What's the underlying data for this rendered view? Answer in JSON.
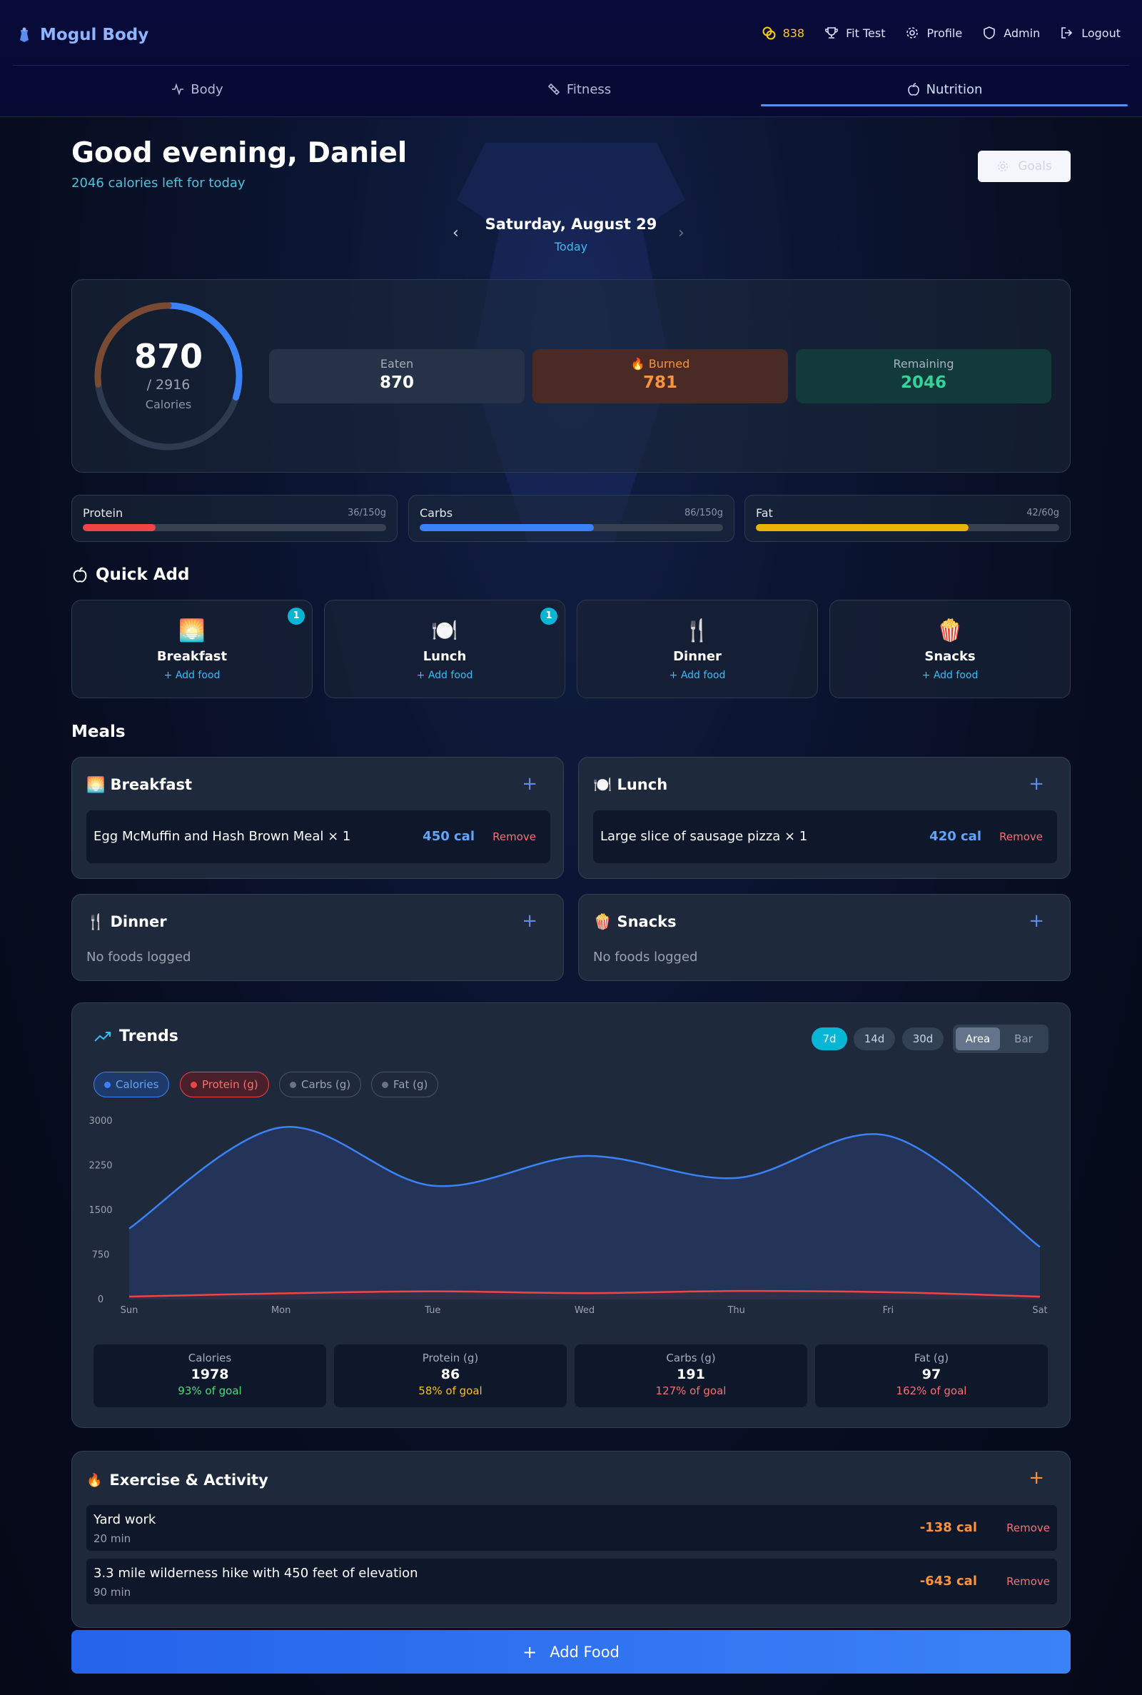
{
  "header": {
    "brand": "Mogul Body",
    "coins": "838",
    "nav": {
      "fit_test": "Fit Test",
      "profile": "Profile",
      "admin": "Admin",
      "logout": "Logout"
    },
    "tabs": [
      {
        "label": "Body"
      },
      {
        "label": "Fitness"
      },
      {
        "label": "Nutrition"
      }
    ]
  },
  "greeting": {
    "title": "Good evening, Daniel",
    "subtitle": "2046 calories left for today",
    "goals_button": "Goals"
  },
  "date": {
    "label": "Saturday, August 29",
    "sub": "Today"
  },
  "summary": {
    "ring_value": "870",
    "ring_goal": "/ 2916",
    "ring_label": "Calories",
    "eaten_fraction": 0.298,
    "burned_fraction": 0.268,
    "eaten": {
      "label": "Eaten",
      "value": "870"
    },
    "burned": {
      "label": "Burned",
      "value": "781"
    },
    "remaining": {
      "label": "Remaining",
      "value": "2046"
    }
  },
  "macros": [
    {
      "name": "Protein",
      "value": "36/150g",
      "fraction": 0.24,
      "color": "#ef4444"
    },
    {
      "name": "Carbs",
      "value": "86/150g",
      "fraction": 0.573,
      "color": "#3b82f6"
    },
    {
      "name": "Fat",
      "value": "42/60g",
      "fraction": 0.7,
      "color": "#eab308"
    }
  ],
  "quick_add": {
    "title": "Quick Add",
    "items": [
      {
        "emoji": "🌅",
        "name": "Breakfast",
        "add": "+ Add food",
        "badge": "1"
      },
      {
        "emoji": "🍽️",
        "name": "Lunch",
        "add": "+ Add food",
        "badge": "1"
      },
      {
        "emoji": "🍴",
        "name": "Dinner",
        "add": "+ Add food"
      },
      {
        "emoji": "🍿",
        "name": "Snacks",
        "add": "+ Add food"
      }
    ]
  },
  "meals": {
    "title": "Meals",
    "breakfast": {
      "title": "🌅 Breakfast",
      "food": "Egg McMuffin and Hash Brown Meal × 1",
      "cal": "450 cal",
      "remove": "Remove"
    },
    "lunch": {
      "title": "🍽️ Lunch",
      "food": "Large slice of sausage pizza × 1",
      "cal": "420 cal",
      "remove": "Remove"
    },
    "dinner": {
      "title": "🍴 Dinner",
      "empty": "No foods logged"
    },
    "snacks": {
      "title": "🍿 Snacks",
      "empty": "No foods logged"
    }
  },
  "trends": {
    "title": "Trends",
    "ranges": [
      "7d",
      "14d",
      "30d"
    ],
    "active_range": "7d",
    "views": [
      "Area",
      "Bar"
    ],
    "active_view": "Area",
    "series_toggles": [
      {
        "label": "Calories",
        "active": true,
        "color": "#3b82f6"
      },
      {
        "label": "Protein (g)",
        "active": true,
        "color": "#ef4444"
      },
      {
        "label": "Carbs (g)",
        "active": false,
        "color": "#6b7280"
      },
      {
        "label": "Fat (g)",
        "active": false,
        "color": "#6b7280"
      }
    ],
    "stats": [
      {
        "label": "Calories",
        "value": "1978",
        "pct": "93% of goal",
        "color": "#4ade80"
      },
      {
        "label": "Protein (g)",
        "value": "86",
        "pct": "58% of goal",
        "color": "#fbbf24"
      },
      {
        "label": "Carbs (g)",
        "value": "191",
        "pct": "127% of goal",
        "color": "#f87171"
      },
      {
        "label": "Fat (g)",
        "value": "97",
        "pct": "162% of goal",
        "color": "#f87171"
      }
    ]
  },
  "chart_data": {
    "type": "area",
    "categories": [
      "Sun",
      "Mon",
      "Tue",
      "Wed",
      "Thu",
      "Fri",
      "Sat"
    ],
    "series": [
      {
        "name": "Calories",
        "values": [
          1180,
          2880,
          1900,
          2400,
          2030,
          2740,
          870
        ]
      },
      {
        "name": "Protein (g)",
        "values": [
          36,
          90,
          125,
          95,
          130,
          110,
          36
        ]
      }
    ],
    "yticks": [
      0,
      750,
      1500,
      2250,
      3000
    ],
    "ylim": [
      0,
      3000
    ],
    "xlabel": "",
    "ylabel": "",
    "grid": false,
    "colors": [
      "#3b82f6",
      "#ef4444"
    ]
  },
  "exercise": {
    "title": "Exercise & Activity",
    "items": [
      {
        "name": "Yard work",
        "duration": "20 min",
        "cal": "-138 cal",
        "remove": "Remove"
      },
      {
        "name": "3.3 mile wilderness hike with 450 feet of elevation",
        "duration": "90 min",
        "cal": "-643 cal",
        "remove": "Remove"
      }
    ]
  },
  "add_food_button": "Add Food"
}
